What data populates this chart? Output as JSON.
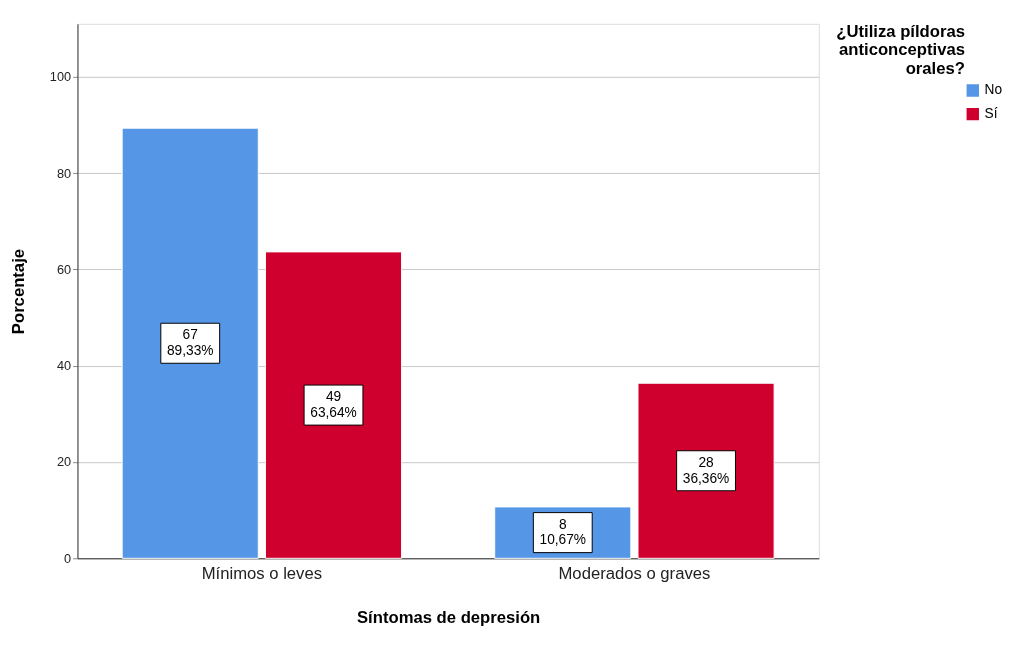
{
  "chart_data": {
    "type": "bar",
    "xlabel": "Síntomas de depresión",
    "ylabel": "Porcentaje",
    "legend_title": "¿Utiliza píldoras anticonceptivas orales?",
    "categories": [
      "Mínimos o leves",
      "Moderados o graves"
    ],
    "series": [
      {
        "name": "No",
        "color": "#5596e6",
        "values": [
          89.33,
          10.67
        ],
        "value_labels": [
          "67\n89,33%",
          "8\n10,67%"
        ]
      },
      {
        "name": "Sí",
        "color": "#d0002e",
        "values": [
          63.64,
          36.36
        ],
        "value_labels": [
          "49\n63,64%",
          "28\n36,36%"
        ]
      }
    ],
    "ylim": [
      0,
      111
    ],
    "yticks": [
      0,
      20,
      40,
      60,
      80,
      100
    ],
    "grid": "y",
    "legend": "top right"
  }
}
